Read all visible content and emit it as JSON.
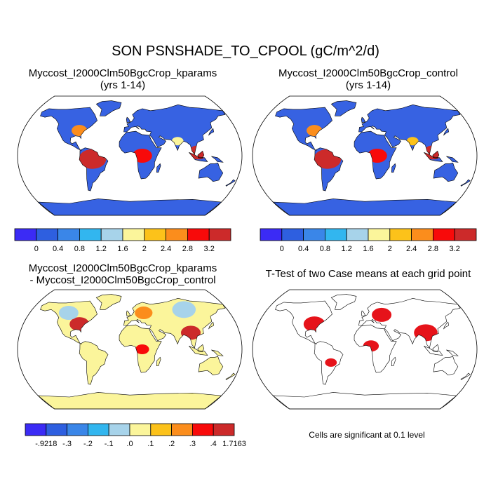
{
  "figure": {
    "title": "SON PSNSHADE_TO_CPOOL (gC/m^2/d)"
  },
  "panels": {
    "top_left": {
      "title_line1": "Myccost_I2000Clm50BgcCrop_kparams",
      "title_line2": "(yrs 1-14)"
    },
    "top_right": {
      "title_line1": "Myccost_I2000Clm50BgcCrop_control",
      "title_line2": "(yrs 1-14)"
    },
    "bottom_left": {
      "title_line1": "Myccost_I2000Clm50BgcCrop_kparams",
      "title_line2": "- Myccost_I2000Clm50BgcCrop_control"
    },
    "bottom_right": {
      "title_line1": "T-Test of two Case means at each grid point",
      "note": "Cells are significant at 0.1 level"
    }
  },
  "chart_data": [
    {
      "type": "heatmap",
      "name": "top_left_map",
      "colorbar_labels": [
        "0",
        "0.4",
        "0.8",
        "1.2",
        "1.6",
        "2",
        "2.4",
        "2.8",
        "3.2"
      ],
      "colorbar_colors": [
        "#3b2bf5",
        "#2e5fe0",
        "#3a86e8",
        "#32b6ef",
        "#a7d3ea",
        "#fbf59b",
        "#fcc21a",
        "#fb8d1c",
        "#f80a0a",
        "#cc2a2a"
      ]
    },
    {
      "type": "heatmap",
      "name": "top_right_map",
      "colorbar_labels": [
        "0",
        "0.4",
        "0.8",
        "1.2",
        "1.6",
        "2",
        "2.4",
        "2.8",
        "3.2"
      ],
      "colorbar_colors": [
        "#3b2bf5",
        "#2e5fe0",
        "#3a86e8",
        "#32b6ef",
        "#a7d3ea",
        "#fbf59b",
        "#fcc21a",
        "#fb8d1c",
        "#f80a0a",
        "#cc2a2a"
      ]
    },
    {
      "type": "heatmap",
      "name": "difference_map",
      "colorbar_labels": [
        "-.9218",
        "-.3",
        "-.2",
        "-.1",
        ".0",
        ".1",
        ".2",
        ".3",
        ".4",
        "1.7163"
      ],
      "colorbar_colors": [
        "#3b2bf5",
        "#2e5fe0",
        "#3a86e8",
        "#32b6ef",
        "#a7d3ea",
        "#fbf59b",
        "#fcc21a",
        "#fb8d1c",
        "#f80a0a",
        "#cc2a2a"
      ]
    },
    {
      "type": "heatmap",
      "name": "ttest_map",
      "significant_color": "#e6131a"
    }
  ],
  "colors": {
    "ocean": "#ffffff",
    "land_high_tl": "#3762e2",
    "antarctica_diff": "#fbf59b"
  }
}
